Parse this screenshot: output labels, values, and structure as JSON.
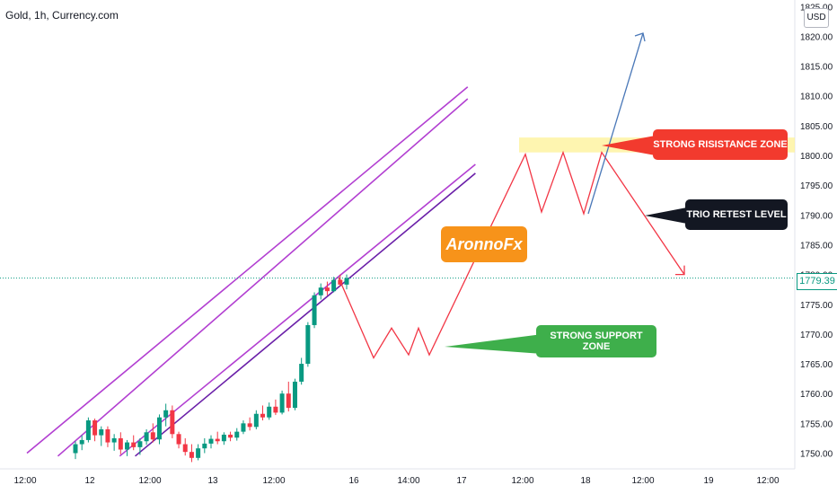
{
  "header": {
    "title": "Gold, 1h, Currency.com",
    "currency": "USD"
  },
  "price_label": "1779.39",
  "annotations": {
    "resistance": "STRONG RISISTANCE ZONE",
    "trio": "TRIO RETEST LEVEL",
    "support": "STRONG SUPPORT ZONE",
    "brand": "AronnoFx"
  },
  "colors": {
    "up": "#089981",
    "down": "#f23645",
    "channel": "#b23fd1",
    "support_line": "#6a1fa8",
    "projection": "#f23645",
    "arrow_blue": "#4a78b8",
    "zone": "#fdf196"
  },
  "chart_data": {
    "type": "candlestick",
    "title": "Gold, 1h, Currency.com",
    "y_axis": {
      "min": 1748,
      "max": 1826,
      "ticks": [
        "1750.00",
        "1755.00",
        "1760.00",
        "1765.00",
        "1770.00",
        "1775.00",
        "1780.00",
        "1785.00",
        "1790.00",
        "1795.00",
        "1800.00",
        "1805.00",
        "1810.00",
        "1815.00",
        "1820.00",
        "1825.00"
      ]
    },
    "x_axis": {
      "ticks": [
        "12:00",
        "12",
        "12:00",
        "13",
        "12:00",
        "16",
        "14:00",
        "17",
        "12:00",
        "18",
        "12:00",
        "19",
        "12:00"
      ]
    },
    "last_price": 1779.39,
    "candles": [
      [
        1750,
        1752,
        1749,
        1751.5
      ],
      [
        1751.5,
        1753,
        1750.5,
        1752.2
      ],
      [
        1752.2,
        1756,
        1751.8,
        1755.5
      ],
      [
        1755.5,
        1755.8,
        1752,
        1753
      ],
      [
        1753,
        1754.5,
        1751.2,
        1754
      ],
      [
        1754,
        1754.5,
        1751,
        1751.8
      ],
      [
        1751.8,
        1753.2,
        1750.4,
        1752.5
      ],
      [
        1752.5,
        1753.5,
        1749.8,
        1750.6
      ],
      [
        1750.6,
        1752.2,
        1749.5,
        1751.8
      ],
      [
        1751.8,
        1753,
        1750.5,
        1751
      ],
      [
        1751,
        1752.5,
        1749.7,
        1752
      ],
      [
        1752,
        1754,
        1751.4,
        1753.5
      ],
      [
        1753.5,
        1755,
        1751.8,
        1752.3
      ],
      [
        1752.3,
        1756.5,
        1751.5,
        1756
      ],
      [
        1756,
        1758.3,
        1754.5,
        1757.2
      ],
      [
        1757.2,
        1758,
        1752.5,
        1753.2
      ],
      [
        1753.2,
        1753.6,
        1750.8,
        1751.5
      ],
      [
        1751.5,
        1752.5,
        1749.6,
        1750.2
      ],
      [
        1750.2,
        1751.5,
        1748.5,
        1749.2
      ],
      [
        1749.2,
        1751.5,
        1748.8,
        1750.8
      ],
      [
        1750.8,
        1752.5,
        1750,
        1751.6
      ],
      [
        1751.6,
        1753,
        1750.8,
        1752.4
      ],
      [
        1752.4,
        1753.6,
        1751.5,
        1752
      ],
      [
        1752,
        1753.5,
        1751.4,
        1753.1
      ],
      [
        1753.1,
        1753.6,
        1752,
        1752.6
      ],
      [
        1752.6,
        1754.2,
        1752.1,
        1753.6
      ],
      [
        1753.6,
        1755.5,
        1753.2,
        1755
      ],
      [
        1755,
        1756,
        1753.8,
        1754.4
      ],
      [
        1754.4,
        1757.2,
        1754,
        1756.6
      ],
      [
        1756.6,
        1758,
        1755.5,
        1756
      ],
      [
        1756,
        1758.5,
        1755.6,
        1757.8
      ],
      [
        1757.8,
        1759,
        1756.4,
        1756.8
      ],
      [
        1756.8,
        1760.5,
        1756.5,
        1760
      ],
      [
        1760,
        1762,
        1757,
        1757.6
      ],
      [
        1757.6,
        1762.5,
        1757.2,
        1762
      ],
      [
        1762,
        1766,
        1761.5,
        1765
      ],
      [
        1765,
        1772,
        1764.5,
        1771.5
      ],
      [
        1771.5,
        1777,
        1771,
        1776.5
      ],
      [
        1776.5,
        1778.5,
        1775.8,
        1777.8
      ],
      [
        1777.8,
        1778.8,
        1776.5,
        1777.2
      ],
      [
        1777.2,
        1779.6,
        1777,
        1779.1
      ],
      [
        1779.1,
        1780,
        1778,
        1778.3
      ],
      [
        1778.3,
        1780,
        1777.5,
        1779.39
      ]
    ],
    "channel_lines": [
      {
        "name": "upper",
        "from": [
          "2021-01-11 12:00",
          1750
        ],
        "to": [
          "2021-01-18 15:00",
          1811.5
        ]
      },
      {
        "name": "inner_upper",
        "from": [
          "2021-01-12 00:00",
          1749.5
        ],
        "to": [
          "2021-01-18 15:00",
          1809.5
        ]
      },
      {
        "name": "inner_lower",
        "from": [
          "2021-01-13 00:00",
          1749.5
        ],
        "to": [
          "2021-01-18 18:00",
          1798.5
        ]
      },
      {
        "name": "lower",
        "from": [
          "2021-01-13 06:00",
          1749.5
        ],
        "to": [
          "2021-01-18 18:00",
          1797
        ]
      }
    ],
    "resistance_zone": [
      1800.5,
      1803
    ],
    "projection_path": [
      1779.5,
      1766,
      1771,
      1766.5,
      1771,
      1766.5,
      1800.2,
      1790.5,
      1800.5,
      1790.2,
      1800.5,
      1780
    ]
  }
}
